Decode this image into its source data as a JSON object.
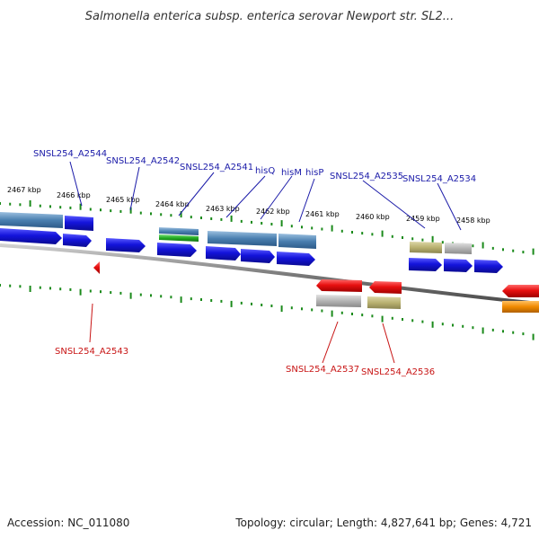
{
  "title": "Salmonella enterica subsp. enterica serovar Newport str. SL2...",
  "footer": {
    "accession": "Accession: NC_011080",
    "topology": "Topology: circular; Length: 4,827,641 bp; Genes: 4,721"
  },
  "colors": {
    "forward_gene": "#1414dc",
    "reverse_gene": "#e81010",
    "steelblue_feature": "#4a7fb0",
    "green_feature": "#22aa22",
    "olive_feature": "#b9b170",
    "gray_feature": "#b4b4b4",
    "orange_feature": "#f08a00",
    "ticks": "#1a8a1a",
    "backbone": "#7a7a7a"
  },
  "kbp_labels": [
    "2467 kbp",
    "2466 kbp",
    "2465 kbp",
    "2464 kbp",
    "2463 kbp",
    "2462 kbp",
    "2461 kbp",
    "2460 kbp",
    "2459 kbp",
    "2458 kbp"
  ],
  "forward_labels": [
    "SNSL254_A2544",
    "SNSL254_A2542",
    "SNSL254_A2541",
    "hisQ",
    "hisM",
    "hisP",
    "SNSL254_A2535",
    "SNSL254_A2534"
  ],
  "reverse_labels": [
    "SNSL254_A2543",
    "SNSL254_A2537",
    "SNSL254_A2536"
  ]
}
